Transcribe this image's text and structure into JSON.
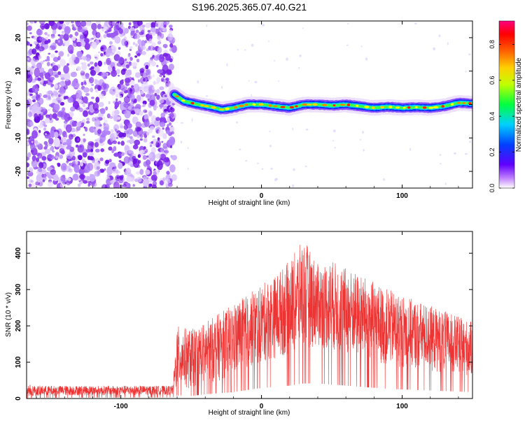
{
  "chart_data": [
    {
      "type": "heatmap",
      "title": "S196.2025.365.07.40.G21",
      "xlabel": "Height of straight line (km)",
      "ylabel": "Frequency (Hz)",
      "xlim": [
        -167,
        150
      ],
      "ylim": [
        -25,
        25
      ],
      "xticks": [
        -100,
        0,
        100
      ],
      "yticks": [
        -20,
        -10,
        0,
        10,
        20
      ],
      "noise_region": [
        -167,
        -62
      ],
      "signal_onset": -62,
      "signal_trace": [
        {
          "x": -62,
          "f": 3
        },
        {
          "x": -55,
          "f": 1
        },
        {
          "x": -45,
          "f": 0
        },
        {
          "x": -35,
          "f": -0.8
        },
        {
          "x": -28,
          "f": -1.5
        },
        {
          "x": -20,
          "f": -1
        },
        {
          "x": -10,
          "f": 0
        },
        {
          "x": 0,
          "f": 0
        },
        {
          "x": 10,
          "f": -0.5
        },
        {
          "x": 20,
          "f": -1
        },
        {
          "x": 30,
          "f": 0
        },
        {
          "x": 40,
          "f": 0
        },
        {
          "x": 50,
          "f": -0.3
        },
        {
          "x": 60,
          "f": 0
        },
        {
          "x": 70,
          "f": -0.5
        },
        {
          "x": 80,
          "f": -1
        },
        {
          "x": 90,
          "f": -0.7
        },
        {
          "x": 100,
          "f": -1
        },
        {
          "x": 110,
          "f": -0.8
        },
        {
          "x": 120,
          "f": -1
        },
        {
          "x": 130,
          "f": -0.5
        },
        {
          "x": 140,
          "f": 0.5
        },
        {
          "x": 150,
          "f": 0.3
        }
      ],
      "colorbar": {
        "label": "Normalized spectral amplitude",
        "range": [
          0,
          0.93
        ],
        "ticks": [
          "0.0",
          "0.2",
          "0.4",
          "0.6",
          "0.8"
        ]
      }
    },
    {
      "type": "line",
      "xlabel": "Height of straight line (km)",
      "ylabel": "SNR (10 * v/v)",
      "xlim": [
        -167,
        150
      ],
      "ylim": [
        0,
        460
      ],
      "xticks": [
        -100,
        0,
        100
      ],
      "yticks": [
        0,
        100,
        200,
        300,
        400
      ],
      "color": "#ee3333",
      "series": [
        {
          "name": "SNR",
          "envelope": [
            {
              "x": -167,
              "lo": 5,
              "hi": 40
            },
            {
              "x": -160,
              "lo": 8,
              "hi": 35
            },
            {
              "x": -100,
              "lo": 10,
              "hi": 35
            },
            {
              "x": -63,
              "lo": 10,
              "hi": 35
            },
            {
              "x": -60,
              "lo": 30,
              "hi": 200
            },
            {
              "x": -50,
              "lo": 25,
              "hi": 190
            },
            {
              "x": -40,
              "lo": 40,
              "hi": 210
            },
            {
              "x": -20,
              "lo": 60,
              "hi": 260
            },
            {
              "x": -5,
              "lo": 90,
              "hi": 300
            },
            {
              "x": 10,
              "lo": 110,
              "hi": 340
            },
            {
              "x": 20,
              "lo": 120,
              "hi": 380
            },
            {
              "x": 30,
              "lo": 140,
              "hi": 440
            },
            {
              "x": 40,
              "lo": 140,
              "hi": 370
            },
            {
              "x": 50,
              "lo": 130,
              "hi": 380
            },
            {
              "x": 70,
              "lo": 110,
              "hi": 340
            },
            {
              "x": 90,
              "lo": 90,
              "hi": 300
            },
            {
              "x": 110,
              "lo": 80,
              "hi": 270
            },
            {
              "x": 130,
              "lo": 70,
              "hi": 240
            },
            {
              "x": 150,
              "lo": 60,
              "hi": 210
            }
          ]
        }
      ]
    }
  ]
}
